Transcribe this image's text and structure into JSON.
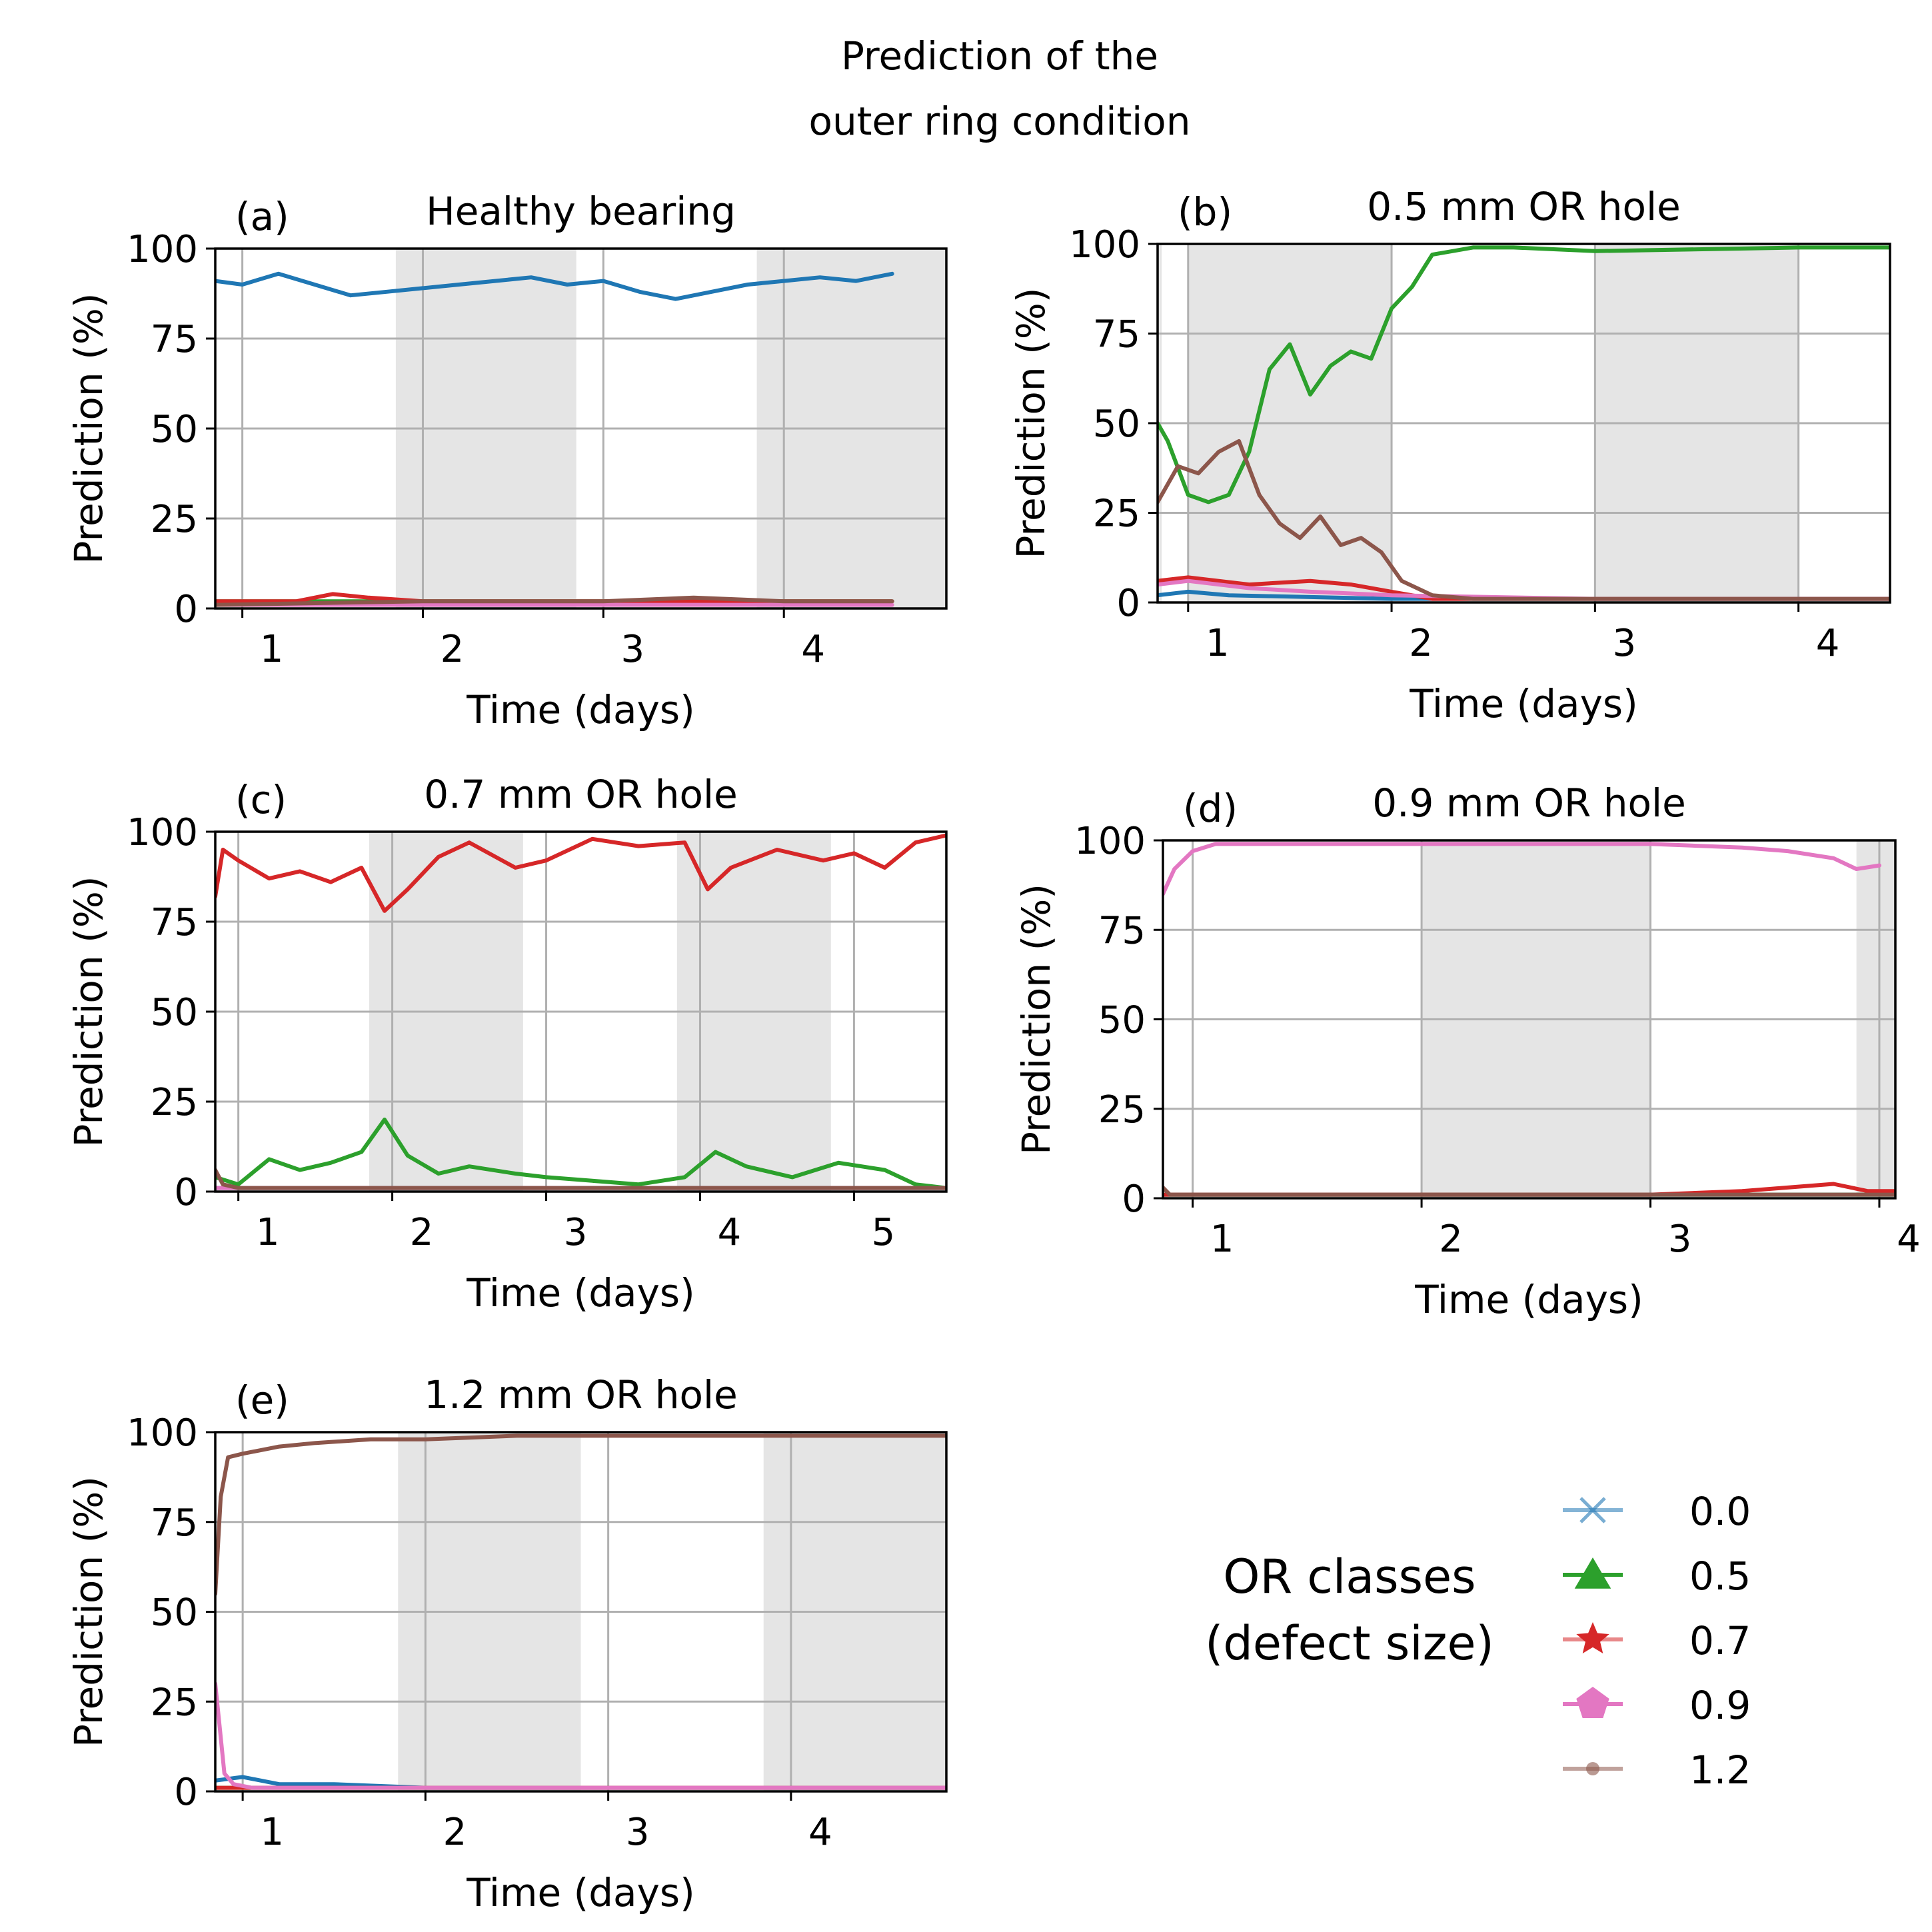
{
  "figure": {
    "suptitle_lines": [
      "Prediction of the",
      "outer ring condition"
    ]
  },
  "colors": {
    "c0.0": "#1f77b4",
    "c0.5": "#2ca02c",
    "c0.7": "#d62728",
    "c0.9": "#e377c2",
    "c1.2": "#8c564b",
    "shade": "#e5e5e5",
    "grid": "#b0b0b0"
  },
  "legend": {
    "title_lines": [
      "OR classes",
      "(defect size)"
    ],
    "entries": [
      {
        "label": "0.0",
        "marker": "x-icon",
        "color": "#1f77b4"
      },
      {
        "label": "0.5",
        "marker": "triangle-icon",
        "color": "#2ca02c"
      },
      {
        "label": "0.7",
        "marker": "star-icon",
        "color": "#d62728"
      },
      {
        "label": "0.9",
        "marker": "pentagon-icon",
        "color": "#e377c2"
      },
      {
        "label": "1.2",
        "marker": "dot-icon",
        "color": "#8c564b"
      }
    ]
  },
  "chart_data": [
    {
      "type": "line",
      "panel": "(a)",
      "title": "Healthy bearing",
      "xlabel": "Time (days)",
      "ylabel": "Prediction (%)",
      "xlim": [
        0.85,
        4.9
      ],
      "ylim": [
        0,
        100
      ],
      "xticks": [
        1,
        2,
        3,
        4
      ],
      "yticks": [
        0,
        25,
        50,
        75,
        100
      ],
      "shaded_intervals": [
        [
          1.85,
          2.85
        ],
        [
          3.85,
          4.9
        ]
      ],
      "series": [
        {
          "name": "0.0",
          "x": [
            0.85,
            1.0,
            1.2,
            1.4,
            1.6,
            1.8,
            2.0,
            2.2,
            2.4,
            2.6,
            2.8,
            3.0,
            3.2,
            3.4,
            3.6,
            3.8,
            4.0,
            4.2,
            4.4,
            4.6
          ],
          "y": [
            91,
            90,
            93,
            90,
            87,
            88,
            89,
            90,
            91,
            92,
            90,
            91,
            88,
            86,
            88,
            90,
            91,
            92,
            91,
            93
          ]
        },
        {
          "name": "0.5",
          "x": [
            0.85,
            2.0,
            3.0,
            4.0,
            4.6
          ],
          "y": [
            2,
            2,
            2,
            2,
            2
          ]
        },
        {
          "name": "0.7",
          "x": [
            0.85,
            1.3,
            1.5,
            1.7,
            2.0,
            3.0,
            4.0,
            4.6
          ],
          "y": [
            2,
            2,
            4,
            3,
            2,
            2,
            2,
            2
          ]
        },
        {
          "name": "0.9",
          "x": [
            0.85,
            2.0,
            3.0,
            4.0,
            4.6
          ],
          "y": [
            1,
            1,
            1,
            1,
            1
          ]
        },
        {
          "name": "1.2",
          "x": [
            0.85,
            2.0,
            3.0,
            3.5,
            4.0,
            4.6
          ],
          "y": [
            1,
            2,
            2,
            3,
            2,
            2
          ]
        }
      ]
    },
    {
      "type": "line",
      "panel": "(b)",
      "title": "0.5 mm OR hole",
      "xlabel": "Time (days)",
      "ylabel": "Prediction (%)",
      "xlim": [
        0.85,
        4.45
      ],
      "ylim": [
        0,
        100
      ],
      "xticks": [
        1,
        2,
        3,
        4
      ],
      "yticks": [
        0,
        25,
        50,
        75,
        100
      ],
      "shaded_intervals": [
        [
          0.85,
          0.87
        ],
        [
          1.0,
          2.0
        ],
        [
          3.0,
          4.0
        ]
      ],
      "series": [
        {
          "name": "0.0",
          "x": [
            0.85,
            1.0,
            1.2,
            2.0,
            3.0,
            4.45
          ],
          "y": [
            2,
            3,
            2,
            1,
            1,
            1
          ]
        },
        {
          "name": "0.5",
          "x": [
            0.85,
            0.9,
            1.0,
            1.1,
            1.2,
            1.3,
            1.4,
            1.5,
            1.6,
            1.7,
            1.8,
            1.9,
            2.0,
            2.1,
            2.2,
            2.4,
            2.6,
            3.0,
            4.0,
            4.45
          ],
          "y": [
            50,
            45,
            30,
            28,
            30,
            42,
            65,
            72,
            58,
            66,
            70,
            68,
            82,
            88,
            97,
            99,
            99,
            98,
            99,
            99
          ]
        },
        {
          "name": "0.7",
          "x": [
            0.85,
            1.0,
            1.3,
            1.6,
            1.8,
            2.0,
            2.2,
            3.0,
            4.45
          ],
          "y": [
            6,
            7,
            5,
            6,
            5,
            3,
            1,
            1,
            1
          ]
        },
        {
          "name": "0.9",
          "x": [
            0.85,
            1.0,
            1.3,
            1.6,
            2.0,
            3.0,
            4.45
          ],
          "y": [
            5,
            6,
            4,
            3,
            2,
            1,
            1
          ]
        },
        {
          "name": "1.2",
          "x": [
            0.85,
            0.95,
            1.05,
            1.15,
            1.25,
            1.35,
            1.45,
            1.55,
            1.65,
            1.75,
            1.85,
            1.95,
            2.05,
            2.2,
            2.4,
            3.0,
            4.45
          ],
          "y": [
            28,
            38,
            36,
            42,
            45,
            30,
            22,
            18,
            24,
            16,
            18,
            14,
            6,
            2,
            1,
            1,
            1
          ]
        }
      ]
    },
    {
      "type": "line",
      "panel": "(c)",
      "title": "0.7 mm OR hole",
      "xlabel": "Time (days)",
      "ylabel": "Prediction (%)",
      "xlim": [
        0.85,
        5.6
      ],
      "ylim": [
        0,
        100
      ],
      "xticks": [
        1,
        2,
        3,
        4,
        5
      ],
      "yticks": [
        0,
        25,
        50,
        75,
        100
      ],
      "shaded_intervals": [
        [
          1.85,
          2.85
        ],
        [
          3.85,
          4.85
        ]
      ],
      "series": [
        {
          "name": "0.0",
          "x": [
            0.85,
            2.0,
            3.0,
            4.0,
            5.6
          ],
          "y": [
            1,
            1,
            1,
            1,
            1
          ]
        },
        {
          "name": "0.5",
          "x": [
            0.85,
            1.0,
            1.2,
            1.4,
            1.6,
            1.8,
            1.95,
            2.1,
            2.3,
            2.5,
            2.8,
            3.0,
            3.3,
            3.6,
            3.9,
            4.1,
            4.3,
            4.6,
            4.9,
            5.2,
            5.4,
            5.6
          ],
          "y": [
            4,
            2,
            9,
            6,
            8,
            11,
            20,
            10,
            5,
            7,
            5,
            4,
            3,
            2,
            4,
            11,
            7,
            4,
            8,
            6,
            2,
            1
          ]
        },
        {
          "name": "0.7",
          "x": [
            0.85,
            0.9,
            1.0,
            1.2,
            1.4,
            1.6,
            1.8,
            1.95,
            2.1,
            2.3,
            2.5,
            2.8,
            3.0,
            3.3,
            3.6,
            3.9,
            4.05,
            4.2,
            4.5,
            4.8,
            5.0,
            5.2,
            5.4,
            5.6
          ],
          "y": [
            82,
            95,
            92,
            87,
            89,
            86,
            90,
            78,
            84,
            93,
            97,
            90,
            92,
            98,
            96,
            97,
            84,
            90,
            95,
            92,
            94,
            90,
            97,
            99
          ]
        },
        {
          "name": "0.9",
          "x": [
            0.85,
            2.0,
            3.0,
            4.0,
            5.6
          ],
          "y": [
            1,
            1,
            1,
            1,
            1
          ]
        },
        {
          "name": "1.2",
          "x": [
            0.85,
            0.9,
            1.0,
            2.0,
            3.0,
            4.0,
            5.6
          ],
          "y": [
            6,
            2,
            1,
            1,
            1,
            1,
            1
          ]
        }
      ]
    },
    {
      "type": "line",
      "panel": "(d)",
      "title": "0.9 mm OR hole",
      "xlabel": "Time (days)",
      "ylabel": "Prediction (%)",
      "xlim": [
        0.87,
        4.07
      ],
      "ylim": [
        0,
        100
      ],
      "xticks": [
        1,
        2,
        3,
        4
      ],
      "yticks": [
        0,
        25,
        50,
        75,
        100
      ],
      "shaded_intervals": [
        [
          2.0,
          3.0
        ],
        [
          3.9,
          4.07
        ]
      ],
      "series": [
        {
          "name": "0.0",
          "x": [
            0.87,
            2.0,
            3.0,
            4.07
          ],
          "y": [
            1,
            1,
            1,
            1
          ]
        },
        {
          "name": "0.5",
          "x": [
            0.87,
            2.0,
            3.0,
            4.07
          ],
          "y": [
            1,
            1,
            1,
            1
          ]
        },
        {
          "name": "0.7",
          "x": [
            0.87,
            3.0,
            3.4,
            3.6,
            3.8,
            3.95,
            4.07
          ],
          "y": [
            1,
            1,
            2,
            3,
            4,
            2,
            2
          ]
        },
        {
          "name": "0.9",
          "x": [
            0.87,
            0.92,
            1.0,
            1.1,
            2.0,
            3.0,
            3.4,
            3.6,
            3.8,
            3.9,
            4.0
          ],
          "y": [
            85,
            92,
            97,
            99,
            99,
            99,
            98,
            97,
            95,
            92,
            93
          ]
        },
        {
          "name": "1.2",
          "x": [
            0.87,
            0.9,
            1.0,
            2.0,
            3.0,
            4.07
          ],
          "y": [
            3,
            1,
            1,
            1,
            1,
            1
          ]
        }
      ]
    },
    {
      "type": "line",
      "panel": "(e)",
      "title": "1.2 mm OR hole",
      "xlabel": "Time (days)",
      "ylabel": "Prediction (%)",
      "xlim": [
        0.85,
        4.85
      ],
      "ylim": [
        0,
        100
      ],
      "xticks": [
        1,
        2,
        3,
        4
      ],
      "yticks": [
        0,
        25,
        50,
        75,
        100
      ],
      "shaded_intervals": [
        [
          1.85,
          2.85
        ],
        [
          3.85,
          4.85
        ]
      ],
      "series": [
        {
          "name": "0.0",
          "x": [
            0.85,
            1.0,
            1.2,
            1.5,
            2.0,
            3.0,
            4.0,
            4.85
          ],
          "y": [
            3,
            4,
            2,
            2,
            1,
            1,
            1,
            1
          ]
        },
        {
          "name": "0.5",
          "x": [
            0.85,
            2.0,
            3.0,
            4.85
          ],
          "y": [
            1,
            1,
            1,
            1
          ]
        },
        {
          "name": "0.7",
          "x": [
            0.85,
            2.0,
            3.0,
            4.85
          ],
          "y": [
            1,
            1,
            1,
            1
          ]
        },
        {
          "name": "0.9",
          "x": [
            0.85,
            0.87,
            0.9,
            0.95,
            1.05,
            2.0,
            4.85
          ],
          "y": [
            30,
            20,
            5,
            2,
            1,
            1,
            1
          ]
        },
        {
          "name": "1.2",
          "x": [
            0.85,
            0.88,
            0.92,
            1.0,
            1.2,
            1.4,
            1.7,
            2.0,
            2.5,
            3.0,
            4.0,
            4.85
          ],
          "y": [
            55,
            82,
            93,
            94,
            96,
            97,
            98,
            98,
            99,
            99,
            99,
            99
          ]
        }
      ]
    }
  ]
}
